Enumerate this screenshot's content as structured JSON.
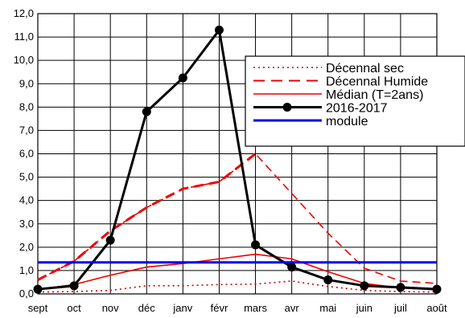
{
  "chart_data": {
    "type": "line",
    "categories": [
      "sept",
      "oct",
      "nov",
      "déc",
      "janv",
      "févr",
      "mars",
      "avr",
      "mai",
      "juin",
      "juil",
      "août"
    ],
    "ylim": [
      0,
      12
    ],
    "yticks": [
      "0,0",
      "1,0",
      "2,0",
      "3,0",
      "4,0",
      "5,0",
      "6,0",
      "7,0",
      "8,0",
      "9,0",
      "10,0",
      "11,0",
      "12,0"
    ],
    "grid": true,
    "legend_position": "top-right",
    "series": [
      {
        "name": "Décennal sec",
        "color": "#cc0000",
        "style": "dotted",
        "values": [
          0.08,
          0.1,
          0.15,
          0.35,
          0.35,
          0.4,
          0.42,
          0.55,
          0.32,
          0.15,
          0.1,
          0.08
        ]
      },
      {
        "name": "Décennal Humide",
        "color": "#ee0000",
        "style": "dashed",
        "values": [
          0.6,
          1.4,
          2.7,
          3.7,
          4.5,
          4.8,
          6.0,
          4.3,
          2.6,
          1.1,
          0.55,
          0.45
        ]
      },
      {
        "name": "Médian (T=2ans)",
        "color": "#ee0000",
        "style": "solid",
        "values": [
          0.2,
          0.4,
          0.8,
          1.15,
          1.3,
          1.5,
          1.7,
          1.5,
          0.95,
          0.45,
          0.25,
          0.18
        ]
      },
      {
        "name": "2016-2017",
        "color": "#000000",
        "style": "solid-markers",
        "values": [
          0.2,
          0.35,
          2.3,
          7.8,
          9.25,
          11.3,
          2.1,
          1.15,
          0.6,
          0.35,
          0.28,
          0.2
        ]
      },
      {
        "name": "module",
        "color": "#0000ee",
        "style": "solid",
        "values": [
          1.35,
          1.35,
          1.35,
          1.35,
          1.35,
          1.35,
          1.35,
          1.35,
          1.35,
          1.35,
          1.35,
          1.35
        ]
      }
    ]
  }
}
